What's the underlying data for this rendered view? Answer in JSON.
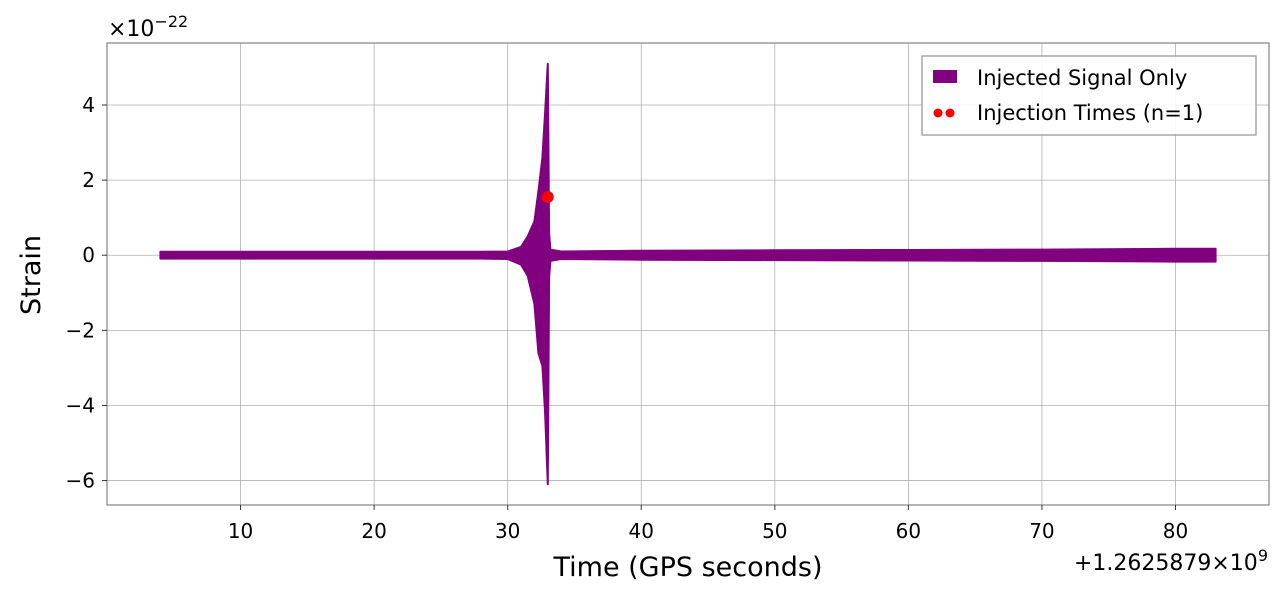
{
  "chart_data": {
    "type": "line",
    "title": "",
    "xlabel": "Time (GPS seconds)",
    "ylabel": "Strain",
    "x_offset_label": "+1.2625879×10",
    "x_offset_exponent": "9",
    "y_scale_label": "×10",
    "y_scale_exponent": "−22",
    "xlim": [
      0,
      87
    ],
    "ylim": [
      -6.65,
      5.65
    ],
    "xticks": [
      10,
      20,
      30,
      40,
      50,
      60,
      70,
      80
    ],
    "xtick_labels": [
      "10",
      "20",
      "30",
      "40",
      "50",
      "60",
      "70",
      "80"
    ],
    "yticks": [
      -6,
      -4,
      -2,
      0,
      2,
      4
    ],
    "ytick_labels": [
      "−6",
      "−4",
      "−2",
      "0",
      "2",
      "4"
    ],
    "grid": true,
    "legend_position": "top-right",
    "legend": [
      {
        "label": "Injected Signal Only",
        "marker": "patch",
        "color": "#800080"
      },
      {
        "label": "Injection Times (n=1)",
        "marker": "dots",
        "color": "#ff0000"
      }
    ],
    "series": [
      {
        "name": "Injected Signal Only",
        "kind": "strain-envelope",
        "color": "#800080",
        "x": [
          4,
          10,
          20,
          28,
          30,
          31,
          31.5,
          32,
          32.3,
          32.6,
          32.8,
          33.0,
          33.1,
          33.2,
          34,
          40,
          50,
          60,
          70,
          80,
          83
        ],
        "upper": [
          0.09,
          0.09,
          0.09,
          0.09,
          0.1,
          0.22,
          0.5,
          0.9,
          1.7,
          2.6,
          3.8,
          5.1,
          0.6,
          0.15,
          0.1,
          0.12,
          0.13,
          0.14,
          0.15,
          0.17,
          0.17
        ],
        "lower": [
          -0.09,
          -0.09,
          -0.09,
          -0.09,
          -0.1,
          -0.25,
          -0.55,
          -1.3,
          -2.6,
          -2.95,
          -4.2,
          -6.1,
          -0.6,
          -0.15,
          -0.1,
          -0.12,
          -0.13,
          -0.14,
          -0.15,
          -0.17,
          -0.17
        ]
      },
      {
        "name": "Injection Times (n=1)",
        "kind": "scatter",
        "color": "#ff0000",
        "x": [
          33.0
        ],
        "y": [
          1.55
        ]
      }
    ]
  }
}
